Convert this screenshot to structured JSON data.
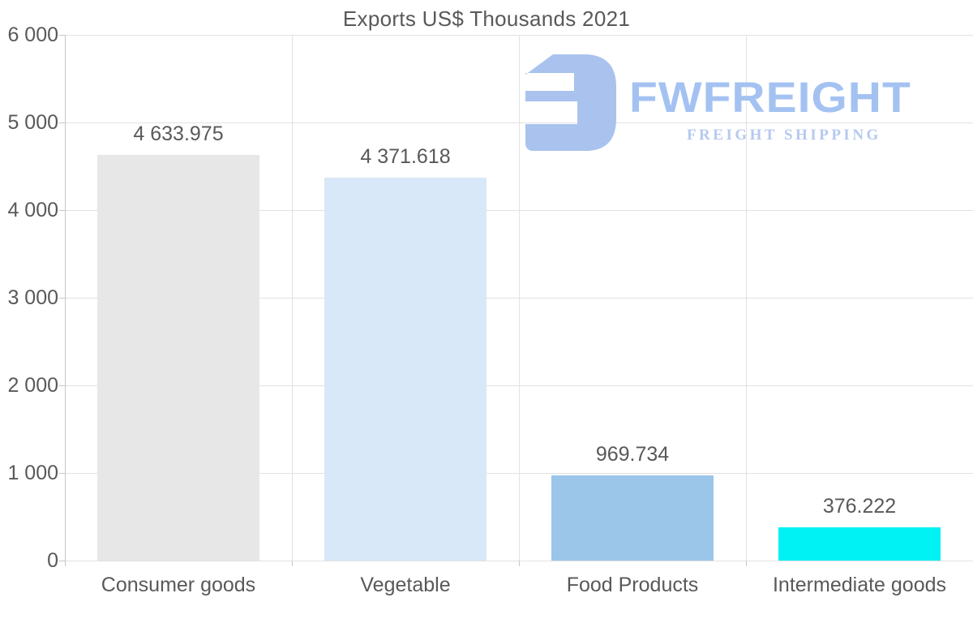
{
  "title": "Exports US$ Thousands 2021",
  "logo": {
    "name": "FWFREIGHT",
    "tagline": "FREIGHT SHIPPING",
    "icon": "fwfreight-monogram-icon",
    "icon_color": "#a9c3ee",
    "wordmark_color": "#a4c2f1",
    "tagline_color": "#b5c9ef"
  },
  "colors": {
    "text": "#595959",
    "grid_line": "#e2e2e2",
    "axis_line": "#c7c7c7",
    "background": "#ffffff"
  },
  "chart_data": {
    "type": "bar",
    "title": "Exports US$ Thousands 2021",
    "categories": [
      "Consumer goods",
      "Vegetable",
      "Food Products",
      "Intermediate goods"
    ],
    "values": [
      4633.975,
      4371.618,
      969.734,
      376.222
    ],
    "value_labels": [
      "4 633.975",
      "4 371.618",
      "969.734",
      "376.222"
    ],
    "bar_colors": [
      "#e7e7e7",
      "#d8e8f8",
      "#9bc5e9",
      "#00f2f5"
    ],
    "xlabel": "",
    "ylabel": "",
    "ylim": [
      0,
      6000
    ],
    "yticks": [
      0,
      1000,
      2000,
      3000,
      4000,
      5000,
      6000
    ],
    "ytick_labels": [
      "0",
      "1 000",
      "2 000",
      "3 000",
      "4 000",
      "5 000",
      "6 000"
    ],
    "grid": true,
    "legend": false
  }
}
